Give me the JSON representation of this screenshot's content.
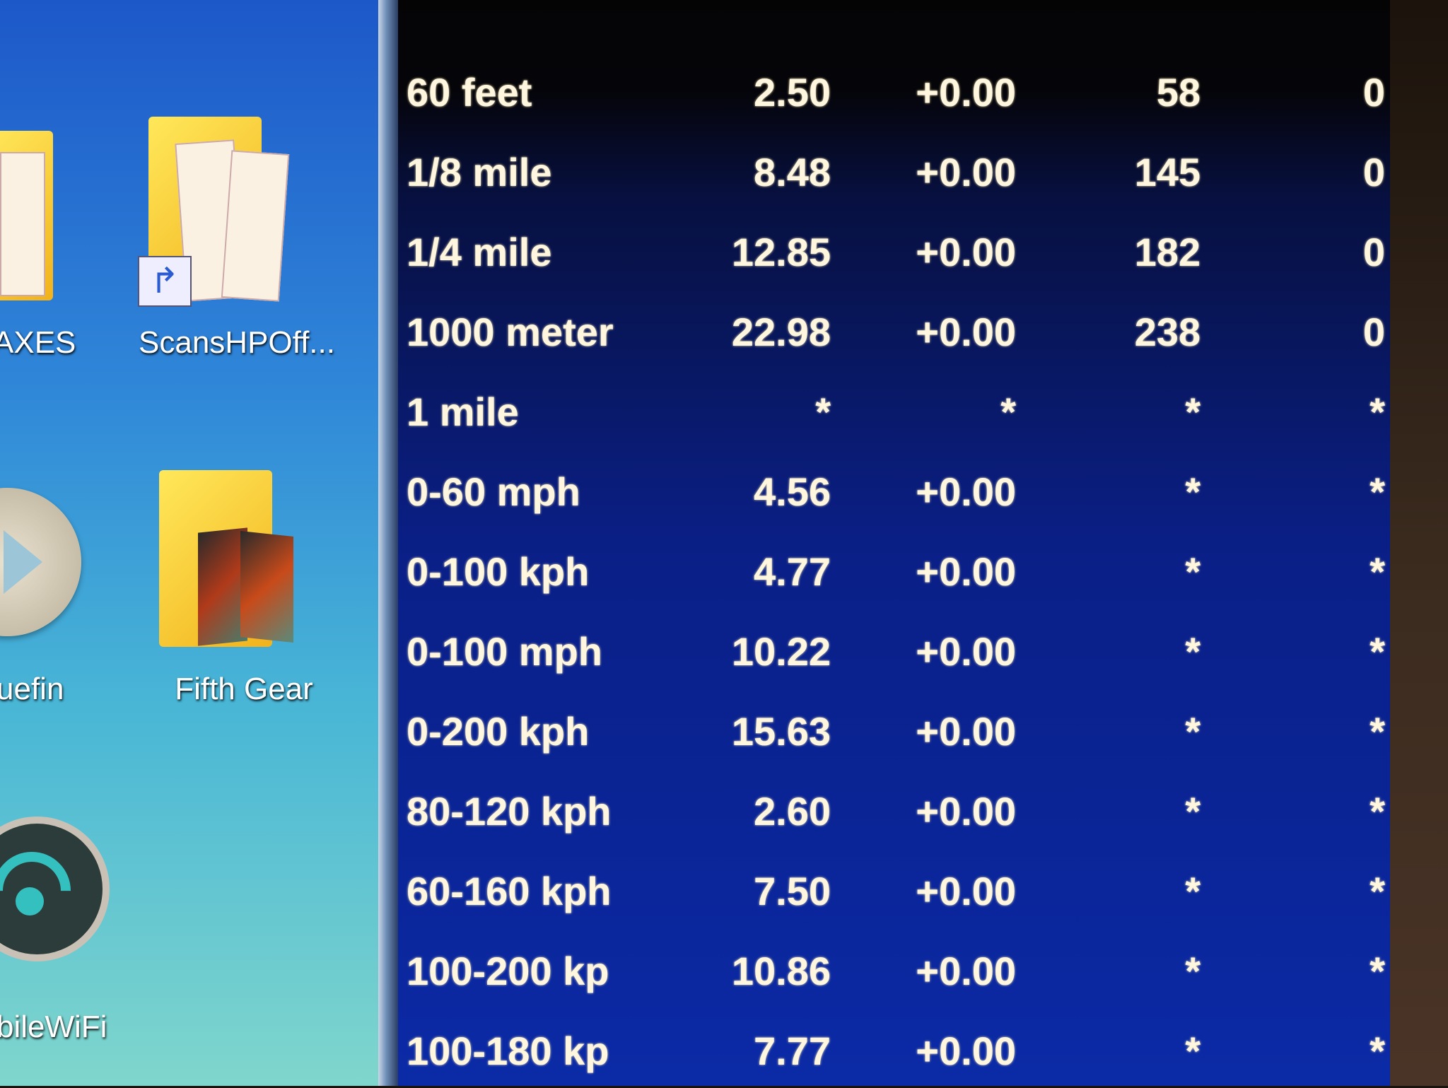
{
  "desktop": {
    "icons": [
      {
        "label": "AXES",
        "icon": "pdf-folder-icon"
      },
      {
        "label": "ScansHPOff...",
        "icon": "pdf-folder-shortcut-icon"
      },
      {
        "label": "uefin",
        "icon": "media-play-icon"
      },
      {
        "label": "Fifth Gear",
        "icon": "image-folder-icon"
      },
      {
        "label": "bileWiFi",
        "icon": "wifi-icon"
      }
    ]
  },
  "results": {
    "rows": [
      {
        "label": "60 feet",
        "time": "2.50",
        "diff": "+0.00",
        "speed": "58",
        "delta": "0"
      },
      {
        "label": "1/8 mile",
        "time": "8.48",
        "diff": "+0.00",
        "speed": "145",
        "delta": "0"
      },
      {
        "label": "1/4 mile",
        "time": "12.85",
        "diff": "+0.00",
        "speed": "182",
        "delta": "0"
      },
      {
        "label": "1000 meter",
        "time": "22.98",
        "diff": "+0.00",
        "speed": "238",
        "delta": "0"
      },
      {
        "label": "1 mile",
        "time": "*",
        "diff": "*",
        "speed": "*",
        "delta": "*"
      },
      {
        "label": "0-60 mph",
        "time": "4.56",
        "diff": "+0.00",
        "speed": "*",
        "delta": "*"
      },
      {
        "label": "0-100 kph",
        "time": "4.77",
        "diff": "+0.00",
        "speed": "*",
        "delta": "*"
      },
      {
        "label": "0-100 mph",
        "time": "10.22",
        "diff": "+0.00",
        "speed": "*",
        "delta": "*"
      },
      {
        "label": "0-200 kph",
        "time": "15.63",
        "diff": "+0.00",
        "speed": "*",
        "delta": "*"
      },
      {
        "label": "80-120 kph",
        "time": "2.60",
        "diff": "+0.00",
        "speed": "*",
        "delta": "*"
      },
      {
        "label": "60-160 kph",
        "time": "7.50",
        "diff": "+0.00",
        "speed": "*",
        "delta": "*"
      },
      {
        "label": "100-200 kp",
        "time": "10.86",
        "diff": "+0.00",
        "speed": "*",
        "delta": "*"
      },
      {
        "label": "100-180 kp",
        "time": "7.77",
        "diff": "+0.00",
        "speed": "*",
        "delta": "*"
      }
    ]
  }
}
